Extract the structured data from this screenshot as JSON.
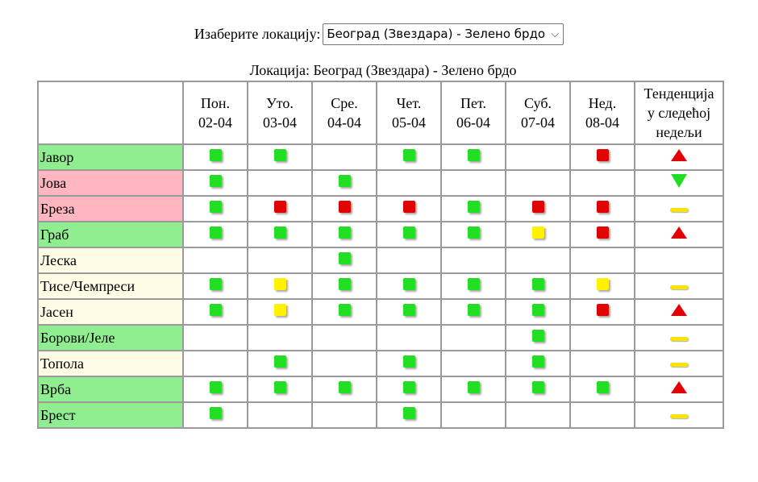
{
  "location_picker": {
    "label": "Изаберите локацију:",
    "selected": "Београд (Звездара) - Зелено брдо",
    "chevron_icon": "chevron-down-icon"
  },
  "caption": "Локација: Београд (Звездара) - Зелено брдо",
  "days": [
    {
      "name": "Пон.",
      "date": "02-04"
    },
    {
      "name": "Уто.",
      "date": "03-04"
    },
    {
      "name": "Сре.",
      "date": "04-04"
    },
    {
      "name": "Чет.",
      "date": "05-04"
    },
    {
      "name": "Пет.",
      "date": "06-04"
    },
    {
      "name": "Суб.",
      "date": "07-04"
    },
    {
      "name": "Нед.",
      "date": "08-04"
    }
  ],
  "trend_header": [
    "Тенденција",
    "у следећој",
    "недељи"
  ],
  "colors": {
    "level_green": "#22dd22",
    "level_red": "#e50000",
    "level_yellow": "#fff200",
    "row_green": "#90ee90",
    "row_pink": "#ffb6c1",
    "row_yellow": "#fffbe4"
  },
  "plants": [
    {
      "name": "Јавор",
      "bg": "green",
      "levels": [
        "g",
        "g",
        "",
        "g",
        "g",
        "",
        "r"
      ],
      "trend": "up"
    },
    {
      "name": "Јова",
      "bg": "pink",
      "levels": [
        "g",
        "",
        "g",
        "",
        "",
        "",
        ""
      ],
      "trend": "down"
    },
    {
      "name": "Бреза",
      "bg": "pink",
      "levels": [
        "g",
        "r",
        "r",
        "r",
        "g",
        "r",
        "r"
      ],
      "trend": "flat"
    },
    {
      "name": "Граб",
      "bg": "green",
      "levels": [
        "g",
        "g",
        "g",
        "g",
        "g",
        "y",
        "r"
      ],
      "trend": "up"
    },
    {
      "name": "Леска",
      "bg": "yellow",
      "levels": [
        "",
        "",
        "g",
        "",
        "",
        "",
        ""
      ],
      "trend": ""
    },
    {
      "name": "Тисе/Чемпреси",
      "bg": "yellow",
      "levels": [
        "g",
        "y",
        "g",
        "g",
        "g",
        "g",
        "y"
      ],
      "trend": "flat"
    },
    {
      "name": "Јасен",
      "bg": "yellow",
      "levels": [
        "g",
        "y",
        "g",
        "g",
        "g",
        "g",
        "r"
      ],
      "trend": "up"
    },
    {
      "name": "Борови/Јеле",
      "bg": "green",
      "levels": [
        "",
        "",
        "",
        "",
        "",
        "g",
        ""
      ],
      "trend": "flat"
    },
    {
      "name": "Топола",
      "bg": "yellow",
      "levels": [
        "",
        "g",
        "",
        "g",
        "",
        "g",
        ""
      ],
      "trend": "flat"
    },
    {
      "name": "Врба",
      "bg": "green",
      "levels": [
        "g",
        "g",
        "g",
        "g",
        "g",
        "g",
        "g"
      ],
      "trend": "up"
    },
    {
      "name": "Брест",
      "bg": "green",
      "levels": [
        "g",
        "",
        "",
        "g",
        "",
        "",
        ""
      ],
      "trend": "flat"
    }
  ]
}
